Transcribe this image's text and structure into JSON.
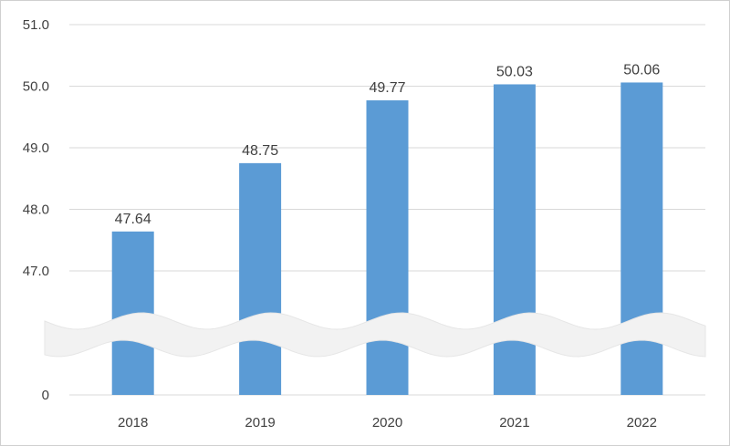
{
  "chart_data": {
    "type": "bar",
    "categories": [
      "2018",
      "2019",
      "2020",
      "2021",
      "2022"
    ],
    "values": [
      47.64,
      48.75,
      49.77,
      50.03,
      50.06
    ],
    "data_labels": [
      "47.64",
      "48.75",
      "49.77",
      "50.03",
      "50.06"
    ],
    "title": "",
    "xlabel": "",
    "ylabel": "",
    "ylim": [
      46.0,
      51.0
    ],
    "axis_break": true,
    "y_ticks": [
      {
        "value": 51.0,
        "label": "51.0"
      },
      {
        "value": 50.0,
        "label": "50.0"
      },
      {
        "value": 49.0,
        "label": "49.0"
      },
      {
        "value": 48.0,
        "label": "48.0"
      },
      {
        "value": 47.0,
        "label": "47.0"
      },
      {
        "value": 0,
        "label": "0"
      }
    ],
    "grid": true,
    "bar_color": "#5b9bd5",
    "grid_color": "#d9d9d9",
    "break_color": "#f2f2f2"
  }
}
